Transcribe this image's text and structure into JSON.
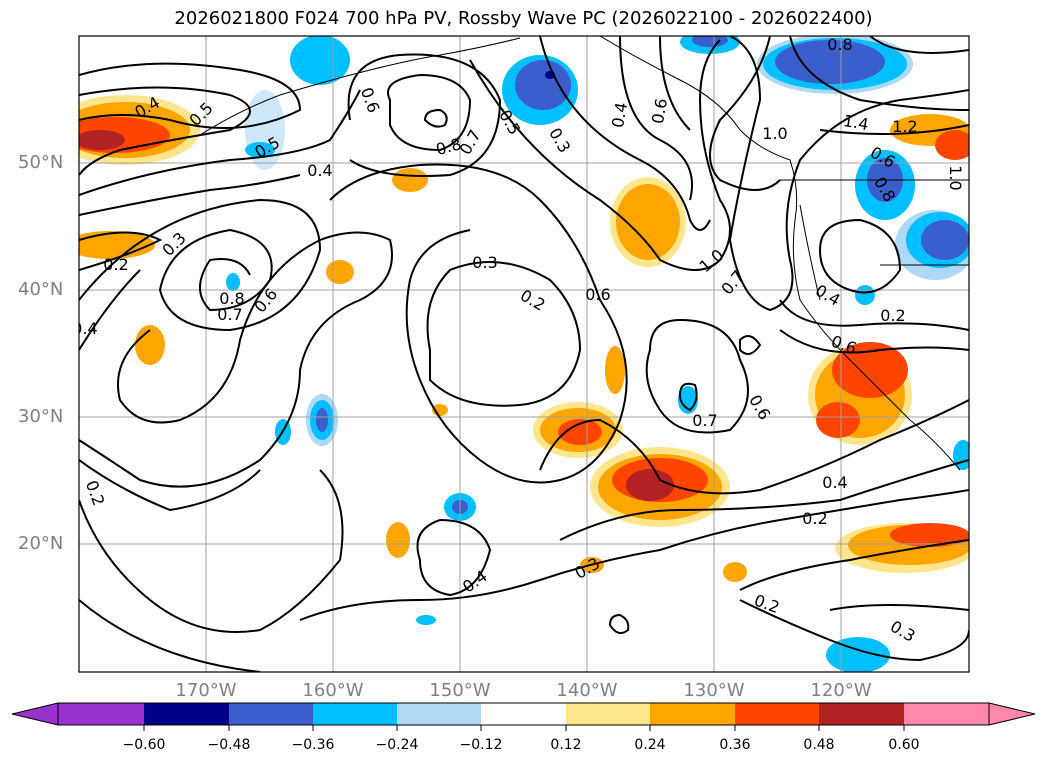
{
  "title": "2026021800 F024 700 hPa PV, Rossby Wave PC (2026022100 - 2026022400)",
  "map": {
    "lon_labels": [
      "170°W",
      "160°W",
      "150°W",
      "140°W",
      "130°W",
      "120°W"
    ],
    "lat_labels": [
      "50°N",
      "40°N",
      "30°N",
      "20°N"
    ],
    "contour_labels": [
      "0.4",
      "0.5",
      "0.5",
      "0.6",
      "0.8",
      "0.7",
      "0.4",
      "0.5",
      "0.3",
      "0.4",
      "0.6",
      "0.8",
      "1.0",
      "1.4",
      "1.2",
      "0.6",
      "0.8",
      "1.0",
      "0.3",
      "0.2",
      "0.8",
      "0.7",
      "0.6",
      "0.3",
      "0.2",
      "0.6",
      "1.0",
      "0.7",
      "0.4",
      "0.6",
      "0.2",
      "0.6",
      "0.7",
      "0.4",
      "0.2",
      "0.4",
      "0.2",
      "0.3",
      "0.2",
      "0.3",
      "0.4"
    ]
  },
  "colorbar": {
    "ticks": [
      "−0.60",
      "−0.48",
      "−0.36",
      "−0.24",
      "−0.12",
      "0.12",
      "0.24",
      "0.36",
      "0.48",
      "0.60"
    ],
    "colors": [
      "#9932cc",
      "#00008b",
      "#3a5fcd",
      "#00bfff",
      "#add8f6",
      "#ffffff",
      "#ffe68c",
      "#ffa500",
      "#ff4500",
      "#b22222",
      "#ff88aa"
    ]
  }
}
